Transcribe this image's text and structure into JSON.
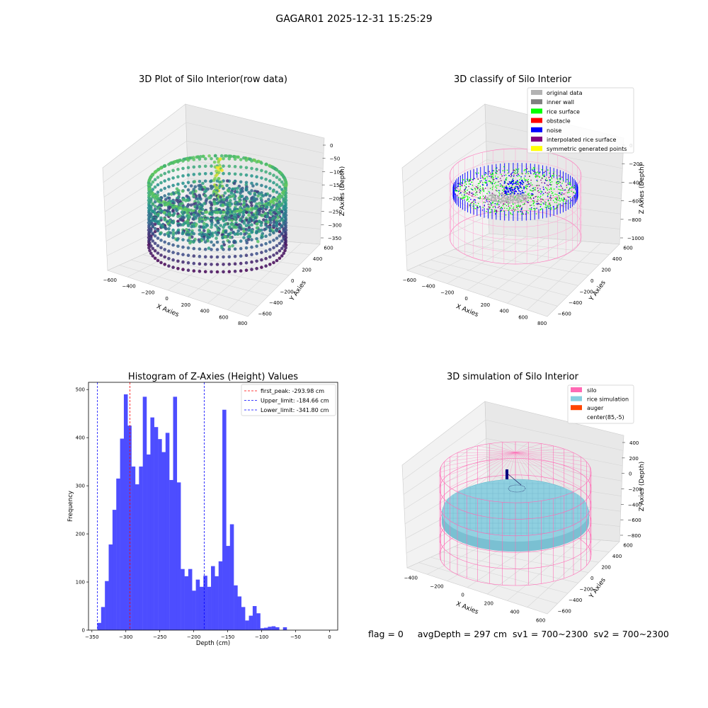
{
  "figure_title": "GAGAR01 2025-12-31 15:25:29",
  "status": {
    "flag": "flag = 0",
    "avg_depth": "avgDepth = 297 cm",
    "sv1": "sv1 = 700~2300",
    "sv2": "sv2 = 700~2300"
  },
  "colors": {
    "histogram_bar": "#4d4dff",
    "peak_line": "#ff0000",
    "limit_line": "#0000ff",
    "silo": "#ff69b4",
    "rice_simulation": "#87cedf",
    "auger": "#ff4500",
    "original_data": "#b3b3b3",
    "inner_wall": "#808080",
    "rice_surface": "#00ff00",
    "obstacle": "#ff0000",
    "noise": "#0000ff",
    "interpolated_rice_surface": "#800080",
    "symmetric_generated_points": "#ffff00"
  },
  "chart_data": [
    {
      "type": "scatter",
      "kind": "3d-scatter",
      "title": "3D Plot of Silo Interior(row data)",
      "xlabel": "X Axies",
      "ylabel": "Y Axies",
      "zlabel": "Z Axies (Depth)",
      "xticks": [
        "−600",
        "−400",
        "−200",
        "0",
        "200",
        "400",
        "600",
        "800"
      ],
      "yticks": [
        "−600",
        "−400",
        "−200",
        "0",
        "200",
        "400",
        "600"
      ],
      "zticks": [
        "0",
        "−50",
        "−100",
        "−150",
        "−200",
        "−250",
        "−300",
        "−350"
      ],
      "xlim": [
        -650,
        800
      ],
      "ylim": [
        -650,
        650
      ],
      "zlim": [
        -370,
        10
      ],
      "colormap": "viridis"
    },
    {
      "type": "scatter",
      "kind": "3d-scatter",
      "title": "3D classify of Silo Interior",
      "xlabel": "X Axies",
      "ylabel": "Y Axies",
      "zlabel": "Z Axies (Depth)",
      "xticks": [
        "−600",
        "−400",
        "−200",
        "0",
        "200",
        "400",
        "600",
        "800"
      ],
      "yticks": [
        "−600",
        "−400",
        "−200",
        "0",
        "200",
        "400",
        "600"
      ],
      "zticks": [
        "0",
        "−200",
        "−400",
        "−600",
        "−800",
        "−1000"
      ],
      "xlim": [
        -650,
        800
      ],
      "ylim": [
        -650,
        650
      ],
      "zlim": [
        -1100,
        100
      ],
      "legend": [
        {
          "label": "original data",
          "color": "#b3b3b3"
        },
        {
          "label": "inner wall",
          "color": "#808080"
        },
        {
          "label": "rice surface",
          "color": "#00ff00"
        },
        {
          "label": "obstacle",
          "color": "#ff0000"
        },
        {
          "label": "noise",
          "color": "#0000ff"
        },
        {
          "label": "interpolated rice surface",
          "color": "#800080"
        },
        {
          "label": "symmetric generated points",
          "color": "#ffff00"
        }
      ],
      "legend_position": "top-right"
    },
    {
      "type": "bar",
      "kind": "histogram",
      "title": "Histogram of Z-Axies (Height) Values",
      "xlabel": "Depth (cm)",
      "ylabel": "Frequency",
      "xlim": [
        -355,
        12
      ],
      "ylim": [
        0,
        515
      ],
      "xticks": [
        -350,
        -300,
        -250,
        -200,
        -150,
        -100,
        -50,
        0
      ],
      "yticks": [
        0,
        100,
        200,
        300,
        400,
        500
      ],
      "bin_width": 5.58,
      "bins_start": -342,
      "values": [
        15,
        48,
        102,
        178,
        250,
        315,
        398,
        490,
        425,
        340,
        303,
        340,
        485,
        365,
        442,
        422,
        397,
        370,
        410,
        312,
        485,
        307,
        127,
        112,
        127,
        82,
        105,
        90,
        113,
        90,
        133,
        112,
        143,
        458,
        175,
        220,
        93,
        70,
        48,
        20,
        30,
        50,
        35,
        4,
        5,
        7,
        8,
        6,
        0,
        6
      ],
      "vlines": [
        {
          "label": "first_peak: -293.98 cm",
          "x": -293.98,
          "color": "#ff0000"
        },
        {
          "label": "Upper_limit: -184.66 cm",
          "x": -184.66,
          "color": "#0000ff"
        },
        {
          "label": "Lower_limit: -341.80 cm",
          "x": -341.8,
          "color": "#0000ff"
        }
      ],
      "legend_position": "top-right"
    },
    {
      "type": "scatter",
      "kind": "3d-surface",
      "title": "3D simulation of Silo Interior",
      "xlabel": "X Axies",
      "ylabel": "Y Axies",
      "zlabel": "Z Axies (Depth)",
      "xticks": [
        "−400",
        "−200",
        "0",
        "200",
        "400",
        "600"
      ],
      "yticks": [
        "−600",
        "−400",
        "−200",
        "0",
        "200",
        "400",
        "600"
      ],
      "zticks": [
        "400",
        "200",
        "0",
        "−200",
        "−400",
        "−600",
        "−800"
      ],
      "xlim": [
        -500,
        700
      ],
      "ylim": [
        -650,
        650
      ],
      "zlim": [
        -850,
        450
      ],
      "legend": [
        {
          "label": "silo",
          "color": "#ff69b4"
        },
        {
          "label": "rice simulation",
          "color": "#87cedf"
        },
        {
          "label": "auger",
          "color": "#ff4500"
        },
        {
          "label": "center(85,-5)",
          "color": ""
        }
      ],
      "legend_position": "top-right"
    }
  ]
}
